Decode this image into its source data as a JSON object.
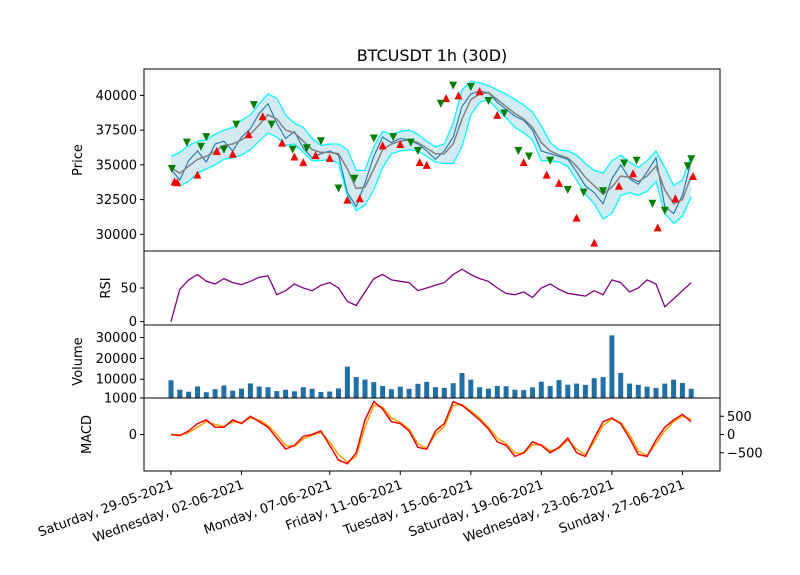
{
  "chart_data": {
    "type": "line",
    "title": "BTCUSDT 1h (30D)",
    "x_tick_labels": [
      "Saturday, 29-05-2021",
      "Wednesday, 02-06-2021",
      "Monday, 07-06-2021",
      "Friday, 11-06-2021",
      "Tuesday, 15-06-2021",
      "Saturday, 19-06-2021",
      "Wednesday, 23-06-2021",
      "Sunday, 27-06-2021"
    ],
    "panels": {
      "price": {
        "ylabel": "Price",
        "ylim": [
          28800,
          41900
        ],
        "ticks": [
          30000,
          32500,
          35000,
          37500,
          40000
        ],
        "tick_labels": [
          "30000",
          "32500",
          "35000",
          "37500",
          "40000"
        ],
        "series_days": [
          0,
          0.5,
          1,
          1.5,
          2,
          2.5,
          3,
          3.5,
          4,
          4.5,
          5,
          5.5,
          6,
          6.5,
          7,
          7.5,
          8,
          8.5,
          9,
          9.5,
          10,
          10.5,
          11,
          11.5,
          12,
          12.5,
          13,
          13.5,
          14,
          14.5,
          15,
          15.5,
          16,
          16.5,
          17,
          17.5,
          18,
          18.5,
          19,
          19.5,
          20,
          20.5,
          21,
          21.5,
          22,
          22.5,
          23,
          23.5,
          24,
          24.5,
          25,
          25.5,
          26,
          26.5,
          27,
          27.5,
          28,
          28.5,
          29,
          29.5
        ],
        "close": [
          34700,
          33900,
          35300,
          36000,
          35200,
          36500,
          36700,
          36000,
          37000,
          37600,
          38700,
          39400,
          38000,
          36900,
          37400,
          36200,
          35500,
          35800,
          36000,
          35700,
          33000,
          32000,
          33700,
          35600,
          37000,
          36600,
          36900,
          36800,
          36500,
          36000,
          35400,
          36000,
          37000,
          39200,
          40100,
          40300,
          40200,
          39500,
          39000,
          38500,
          38200,
          37500,
          36000,
          35800,
          35600,
          35400,
          34500,
          33500,
          33000,
          32200,
          34000,
          35000,
          34000,
          33600,
          34500,
          35500,
          32000,
          31500,
          32800,
          35300
        ],
        "sma": [
          34800,
          34400,
          34900,
          35400,
          35600,
          36000,
          36400,
          36500,
          36800,
          37200,
          37900,
          38600,
          38300,
          37500,
          37300,
          36700,
          36100,
          35900,
          35900,
          35800,
          34700,
          33300,
          33400,
          34700,
          36100,
          36500,
          36700,
          36800,
          36600,
          36200,
          35800,
          35800,
          36500,
          38300,
          39700,
          40100,
          40200,
          39700,
          39200,
          38700,
          38300,
          37700,
          36600,
          36000,
          35700,
          35500,
          34900,
          34100,
          33500,
          32900,
          33400,
          34200,
          34100,
          33800,
          34200,
          34900,
          33200,
          32200,
          32500,
          34200
        ],
        "band_upper": [
          35600,
          35900,
          36400,
          36700,
          36800,
          37200,
          37500,
          37700,
          38200,
          38600,
          39400,
          40100,
          39800,
          38600,
          38000,
          37700,
          36900,
          36400,
          36500,
          36500,
          36100,
          34600,
          34600,
          36300,
          37400,
          37200,
          37400,
          37500,
          37200,
          36700,
          36300,
          36500,
          38000,
          40400,
          41000,
          40900,
          40700,
          40400,
          40100,
          39700,
          39300,
          38800,
          37800,
          36600,
          36100,
          36000,
          35700,
          35100,
          34600,
          34400,
          35300,
          35700,
          35200,
          34800,
          35300,
          36000,
          34800,
          33500,
          33900,
          35700
        ],
        "band_lower": [
          33700,
          33500,
          33800,
          34400,
          34700,
          35000,
          35400,
          35500,
          35700,
          36100,
          36700,
          37300,
          37000,
          36400,
          36500,
          35900,
          35300,
          35300,
          35400,
          35100,
          32800,
          31700,
          32100,
          33200,
          34800,
          35800,
          36000,
          36100,
          36000,
          35600,
          35200,
          35100,
          35100,
          36300,
          38600,
          39500,
          39700,
          39000,
          38400,
          37700,
          37300,
          36800,
          35300,
          35300,
          35200,
          34900,
          33900,
          32900,
          32200,
          31100,
          31500,
          32800,
          33000,
          32800,
          33100,
          33800,
          31500,
          30800,
          31300,
          32700
        ],
        "colors": {
          "close": "#1f77b4",
          "sma": "#808080",
          "band": "#00ffff",
          "band_fill": "#add8e6"
        }
      },
      "rsi": {
        "ylabel": "RSI",
        "ylim": [
          -5,
          105
        ],
        "ticks": [
          0,
          50
        ],
        "tick_labels": [
          "0",
          "50"
        ],
        "series_days": [
          0,
          0.5,
          1,
          1.5,
          2,
          2.5,
          3,
          3.5,
          4,
          4.5,
          5,
          5.5,
          6,
          6.5,
          7,
          7.5,
          8,
          8.5,
          9,
          9.5,
          10,
          10.5,
          11,
          11.5,
          12,
          12.5,
          13,
          13.5,
          14,
          14.5,
          15,
          15.5,
          16,
          16.5,
          17,
          17.5,
          18,
          18.5,
          19,
          19.5,
          20,
          20.5,
          21,
          21.5,
          22,
          22.5,
          23,
          23.5,
          24,
          24.5,
          25,
          25.5,
          26,
          26.5,
          27,
          27.5,
          28,
          28.5,
          29,
          29.5
        ],
        "values": [
          0,
          48,
          62,
          70,
          60,
          56,
          64,
          58,
          55,
          60,
          66,
          68,
          40,
          46,
          56,
          50,
          46,
          54,
          58,
          50,
          30,
          24,
          44,
          64,
          70,
          62,
          60,
          58,
          46,
          50,
          54,
          58,
          70,
          78,
          70,
          64,
          60,
          50,
          42,
          40,
          44,
          36,
          50,
          56,
          48,
          42,
          40,
          38,
          46,
          40,
          62,
          58,
          44,
          50,
          62,
          56,
          22,
          34,
          46,
          58
        ],
        "color": "#800080"
      },
      "volume": {
        "ylabel": "Volume",
        "ylim": [
          1000,
          36000
        ],
        "ticks": [
          1000,
          10000,
          20000,
          30000
        ],
        "tick_labels": [
          "1000",
          "10000",
          "20000",
          "30000"
        ],
        "series_days": [
          0,
          0.5,
          1,
          1.5,
          2,
          2.5,
          3,
          3.5,
          4,
          4.5,
          5,
          5.5,
          6,
          6.5,
          7,
          7.5,
          8,
          8.5,
          9,
          9.5,
          10,
          10.5,
          11,
          11.5,
          12,
          12.5,
          13,
          13.5,
          14,
          14.5,
          15,
          15.5,
          16,
          16.5,
          17,
          17.5,
          18,
          18.5,
          19,
          19.5,
          20,
          20.5,
          21,
          21.5,
          22,
          22.5,
          23,
          23.5,
          24,
          24.5,
          25,
          25.5,
          26,
          26.5,
          27,
          27.5,
          28,
          28.5,
          29,
          29.5
        ],
        "values": [
          9500,
          5000,
          4000,
          6500,
          3800,
          5200,
          7000,
          4500,
          5500,
          8000,
          6500,
          6200,
          4300,
          5000,
          4200,
          6200,
          5400,
          3900,
          4100,
          5600,
          16000,
          11000,
          9800,
          8600,
          6800,
          5200,
          6400,
          5400,
          7800,
          8700,
          6200,
          5900,
          8100,
          13000,
          9800,
          6200,
          5500,
          6800,
          6600,
          5000,
          4800,
          6100,
          8800,
          6700,
          9600,
          7400,
          7900,
          7300,
          10500,
          11000,
          31000,
          13000,
          7900,
          7300,
          6400,
          5800,
          7900,
          9800,
          8200,
          5400
        ],
        "color": "#1f6fa8"
      },
      "macd": {
        "ylabel": "MACD",
        "ylim": [
          -1000,
          1000
        ],
        "ticks": [
          -500,
          0,
          500
        ],
        "tick_labels": [
          "−500",
          "0",
          "500"
        ],
        "series_days": [
          0,
          0.5,
          1,
          1.5,
          2,
          2.5,
          3,
          3.5,
          4,
          4.5,
          5,
          5.5,
          6,
          6.5,
          7,
          7.5,
          8,
          8.5,
          9,
          9.5,
          10,
          10.5,
          11,
          11.5,
          12,
          12.5,
          13,
          13.5,
          14,
          14.5,
          15,
          15.5,
          16,
          16.5,
          17,
          17.5,
          18,
          18.5,
          19,
          19.5,
          20,
          20.5,
          21,
          21.5,
          22,
          22.5,
          23,
          23.5,
          24,
          24.5,
          25,
          25.5,
          26,
          26.5,
          27,
          27.5,
          28,
          28.5,
          29,
          29.5
        ],
        "macd_line": [
          0,
          -30,
          100,
          300,
          400,
          200,
          200,
          400,
          300,
          500,
          350,
          200,
          -100,
          -400,
          -300,
          -50,
          0,
          100,
          -300,
          -700,
          -800,
          -500,
          400,
          900,
          700,
          350,
          300,
          100,
          -350,
          -400,
          100,
          300,
          900,
          800,
          600,
          400,
          150,
          -200,
          -300,
          -600,
          -500,
          -200,
          -300,
          -500,
          -350,
          -100,
          -500,
          -600,
          -100,
          350,
          450,
          300,
          -100,
          -550,
          -600,
          -150,
          200,
          400,
          550,
          350
        ],
        "signal_line": [
          0,
          -10,
          50,
          200,
          350,
          280,
          220,
          350,
          320,
          450,
          400,
          250,
          0,
          -300,
          -330,
          -120,
          -20,
          60,
          -200,
          -550,
          -750,
          -600,
          200,
          800,
          750,
          450,
          330,
          150,
          -250,
          -380,
          0,
          220,
          800,
          820,
          650,
          450,
          200,
          -100,
          -250,
          -500,
          -520,
          -280,
          -280,
          -450,
          -380,
          -150,
          -400,
          -560,
          -200,
          250,
          420,
          330,
          0,
          -450,
          -580,
          -250,
          100,
          350,
          500,
          420
        ],
        "colors": {
          "macd_line": "#ff0000",
          "signal_line": "#ffa500"
        }
      }
    },
    "buy_signals": [
      {
        "day": 0.2,
        "price": 33800
      },
      {
        "day": 0.35,
        "price": 33750
      },
      {
        "day": 1.5,
        "price": 34300
      },
      {
        "day": 2.6,
        "price": 36000
      },
      {
        "day": 3.5,
        "price": 35800
      },
      {
        "day": 4.4,
        "price": 37200
      },
      {
        "day": 5.2,
        "price": 38500
      },
      {
        "day": 6.3,
        "price": 36600
      },
      {
        "day": 7.0,
        "price": 35600
      },
      {
        "day": 7.5,
        "price": 35200
      },
      {
        "day": 8.2,
        "price": 35700
      },
      {
        "day": 9.0,
        "price": 35500
      },
      {
        "day": 10.0,
        "price": 32500
      },
      {
        "day": 10.7,
        "price": 32600
      },
      {
        "day": 12.0,
        "price": 36400
      },
      {
        "day": 13.0,
        "price": 36500
      },
      {
        "day": 14.1,
        "price": 35200
      },
      {
        "day": 14.5,
        "price": 35000
      },
      {
        "day": 15.6,
        "price": 39800
      },
      {
        "day": 16.3,
        "price": 40000
      },
      {
        "day": 17.5,
        "price": 40300
      },
      {
        "day": 18.5,
        "price": 38600
      },
      {
        "day": 20.0,
        "price": 35200
      },
      {
        "day": 21.3,
        "price": 34300
      },
      {
        "day": 22.0,
        "price": 33700
      },
      {
        "day": 23.0,
        "price": 31200
      },
      {
        "day": 24.0,
        "price": 29400
      },
      {
        "day": 25.4,
        "price": 33500
      },
      {
        "day": 26.2,
        "price": 34400
      },
      {
        "day": 27.6,
        "price": 30500
      },
      {
        "day": 28.6,
        "price": 32600
      },
      {
        "day": 29.6,
        "price": 34200
      }
    ],
    "sell_signals": [
      {
        "day": 0.05,
        "price": 34700
      },
      {
        "day": 0.9,
        "price": 36600
      },
      {
        "day": 1.7,
        "price": 36300
      },
      {
        "day": 2.0,
        "price": 37000
      },
      {
        "day": 3.0,
        "price": 36100
      },
      {
        "day": 3.7,
        "price": 37900
      },
      {
        "day": 4.7,
        "price": 39300
      },
      {
        "day": 5.7,
        "price": 37900
      },
      {
        "day": 6.9,
        "price": 36100
      },
      {
        "day": 7.7,
        "price": 36200
      },
      {
        "day": 8.5,
        "price": 36700
      },
      {
        "day": 9.5,
        "price": 33300
      },
      {
        "day": 10.4,
        "price": 34000
      },
      {
        "day": 11.5,
        "price": 36900
      },
      {
        "day": 12.6,
        "price": 37000
      },
      {
        "day": 13.6,
        "price": 36600
      },
      {
        "day": 14.0,
        "price": 36000
      },
      {
        "day": 15.3,
        "price": 39400
      },
      {
        "day": 16.0,
        "price": 40700
      },
      {
        "day": 17.0,
        "price": 40600
      },
      {
        "day": 18.0,
        "price": 39600
      },
      {
        "day": 18.9,
        "price": 38700
      },
      {
        "day": 19.7,
        "price": 36000
      },
      {
        "day": 20.3,
        "price": 35600
      },
      {
        "day": 21.5,
        "price": 35300
      },
      {
        "day": 22.5,
        "price": 33200
      },
      {
        "day": 23.4,
        "price": 33000
      },
      {
        "day": 24.5,
        "price": 33100
      },
      {
        "day": 25.7,
        "price": 35100
      },
      {
        "day": 26.4,
        "price": 35300
      },
      {
        "day": 27.3,
        "price": 32200
      },
      {
        "day": 28.0,
        "price": 31700
      },
      {
        "day": 29.3,
        "price": 34900
      },
      {
        "day": 29.5,
        "price": 35400
      }
    ],
    "signal_colors": {
      "buy": "#ff0000",
      "sell": "#008000"
    }
  }
}
